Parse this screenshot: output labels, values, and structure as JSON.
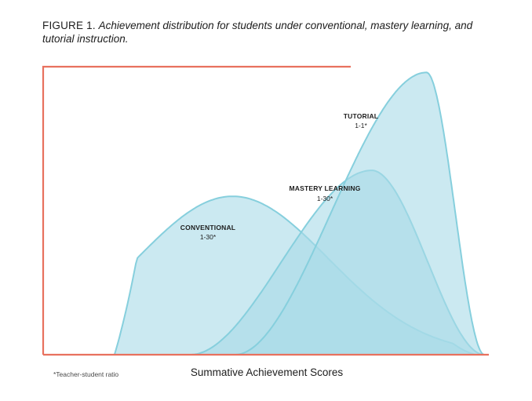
{
  "caption": {
    "figure_label": "FIGURE 1.",
    "text": "Achievement distribution for students under conventional, mastery learning, and tutorial instruction."
  },
  "footnote": "*Teacher-student ratio",
  "colors": {
    "axis": "#e8715e",
    "curve_stroke": "#86cfdd",
    "curve_fill": "#a9dbe7"
  },
  "chart_data": {
    "type": "area",
    "title": "Achievement distribution for students under conventional, mastery learning, and tutorial instruction.",
    "xlabel": "Summative Achievement Scores",
    "ylabel": "",
    "axis_ticks": false,
    "grid": false,
    "legend": "none",
    "series": [
      {
        "name": "CONVENTIONAL",
        "ratio": "1-30*",
        "peak_x": 0.425,
        "spread": 0.215,
        "start_x": 0.16,
        "end_x": 0.97,
        "peak": 0.55,
        "shape": "normal"
      },
      {
        "name": "MASTERY LEARNING",
        "ratio": "1-30*",
        "peak_x": 0.737,
        "spread": 0.16,
        "start_x": 0.33,
        "end_x": 0.99,
        "peak": 0.64,
        "shape": "left-skewed"
      },
      {
        "name": "TUTORIAL",
        "ratio": "1-1*",
        "peak_x": 0.86,
        "spread": 0.1,
        "start_x": 0.43,
        "end_x": 0.99,
        "peak": 0.98,
        "shape": "left-skewed"
      }
    ]
  }
}
